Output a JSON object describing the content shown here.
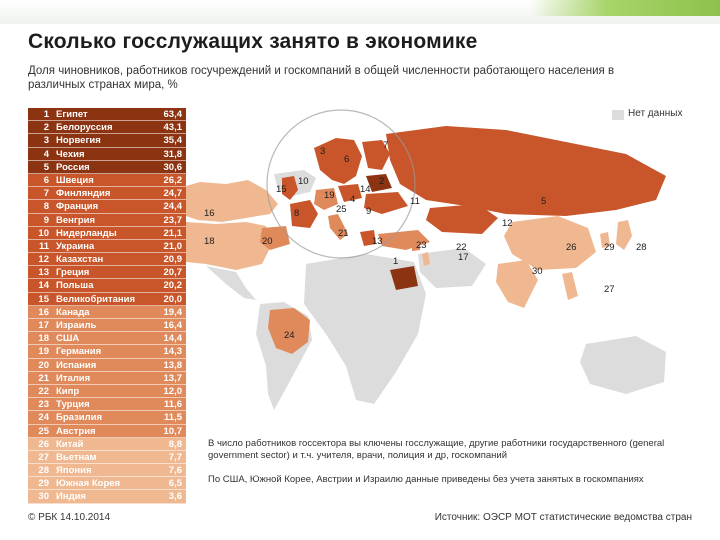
{
  "header": {
    "title": "Сколько госслужащих занято в экономике",
    "subtitle": "Доля чиновников, работников госучреждений и госкомпаний в общей численности работающего населения в различных странах мира, %"
  },
  "legend": {
    "no_data_label": "Нет данных",
    "no_data_color": "#dcdcdc"
  },
  "colors": {
    "tier1": "#8c3312",
    "tier2": "#c8562a",
    "tier3": "#e08a5c",
    "tier4": "#f0b891"
  },
  "chart_data": {
    "type": "table",
    "columns": [
      "rank",
      "country",
      "value"
    ],
    "rows": [
      {
        "rank": "1",
        "country": "Египет",
        "value": "63,4"
      },
      {
        "rank": "2",
        "country": "Белоруссия",
        "value": "43,1"
      },
      {
        "rank": "3",
        "country": "Норвегия",
        "value": "35,4"
      },
      {
        "rank": "4",
        "country": "Чехия",
        "value": "31,8"
      },
      {
        "rank": "5",
        "country": "Россия",
        "value": "30,6"
      },
      {
        "rank": "6",
        "country": "Швеция",
        "value": "26,2"
      },
      {
        "rank": "7",
        "country": "Финляндия",
        "value": "24,7"
      },
      {
        "rank": "8",
        "country": "Франция",
        "value": "24,4"
      },
      {
        "rank": "9",
        "country": "Венгрия",
        "value": "23,7"
      },
      {
        "rank": "10",
        "country": "Нидерланды",
        "value": "21,1"
      },
      {
        "rank": "11",
        "country": "Украина",
        "value": "21,0"
      },
      {
        "rank": "12",
        "country": "Казахстан",
        "value": "20,9"
      },
      {
        "rank": "13",
        "country": "Греция",
        "value": "20,7"
      },
      {
        "rank": "14",
        "country": "Польша",
        "value": "20,2"
      },
      {
        "rank": "15",
        "country": "Великобритания",
        "value": "20,0"
      },
      {
        "rank": "16",
        "country": "Канада",
        "value": "19,4"
      },
      {
        "rank": "17",
        "country": "Израиль",
        "value": "16,4"
      },
      {
        "rank": "18",
        "country": "США",
        "value": "14,4"
      },
      {
        "rank": "19",
        "country": "Германия",
        "value": "14,3"
      },
      {
        "rank": "20",
        "country": "Испания",
        "value": "13,8"
      },
      {
        "rank": "21",
        "country": "Италия",
        "value": "13,7"
      },
      {
        "rank": "22",
        "country": "Кипр",
        "value": "12,0"
      },
      {
        "rank": "23",
        "country": "Турция",
        "value": "11,6"
      },
      {
        "rank": "24",
        "country": "Бразилия",
        "value": "11,5"
      },
      {
        "rank": "25",
        "country": "Австрия",
        "value": "10,7"
      },
      {
        "rank": "26",
        "country": "Китай",
        "value": "8,8"
      },
      {
        "rank": "27",
        "country": "Вьетнам",
        "value": "7,7"
      },
      {
        "rank": "28",
        "country": "Япония",
        "value": "7,6"
      },
      {
        "rank": "29",
        "country": "Южная Корея",
        "value": "6,5"
      },
      {
        "rank": "30",
        "country": "Индия",
        "value": "3,6"
      }
    ]
  },
  "footnotes": {
    "note1": "В число работников госсектора вы ключены госслужащие, другие работники государственного (general government sector) и т.ч. учителя, врачи, полиция и др, госкомпаний",
    "note2": "По США, Южной Корее, Австрии и Израилю данные приведены без учета занятых в госкомпаниях"
  },
  "footer": {
    "credit": "© РБК 14.10.2014",
    "source": "Источник: ОЭСР МОТ статистические ведомства стран"
  }
}
